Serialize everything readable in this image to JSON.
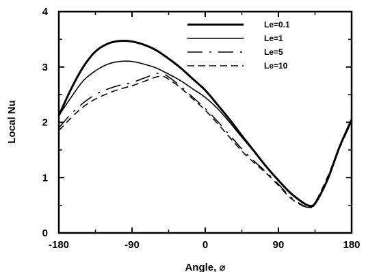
{
  "chart_data": {
    "type": "line",
    "xlabel": "Angle, ⌀",
    "ylabel": "Local Nu",
    "xlim": [
      -180,
      180
    ],
    "ylim": [
      0,
      4
    ],
    "xticks": [
      -180,
      -90,
      0,
      90,
      180
    ],
    "yticks": [
      0,
      1,
      2,
      3,
      4
    ],
    "grid": false,
    "legend_position": "top-right",
    "series": [
      {
        "name": "Le=0.1",
        "style": "thick-solid",
        "x": [
          -180,
          -165,
          -150,
          -135,
          -120,
          -105,
          -90,
          -75,
          -60,
          -45,
          -30,
          -15,
          0,
          15,
          30,
          45,
          60,
          75,
          90,
          105,
          120,
          128,
          135,
          150,
          165,
          180
        ],
        "y": [
          2.12,
          2.6,
          3.0,
          3.28,
          3.42,
          3.47,
          3.46,
          3.4,
          3.3,
          3.15,
          2.98,
          2.78,
          2.58,
          2.32,
          2.05,
          1.76,
          1.48,
          1.2,
          0.95,
          0.72,
          0.55,
          0.49,
          0.53,
          0.95,
          1.55,
          2.05
        ]
      },
      {
        "name": "Le=1",
        "style": "solid",
        "x": [
          -180,
          -165,
          -150,
          -135,
          -120,
          -105,
          -90,
          -75,
          -60,
          -45,
          -30,
          -15,
          0,
          15,
          30,
          45,
          60,
          75,
          90,
          105,
          120,
          128,
          135,
          150,
          165,
          180
        ],
        "y": [
          2.12,
          2.45,
          2.75,
          2.93,
          3.05,
          3.1,
          3.1,
          3.05,
          2.98,
          2.87,
          2.75,
          2.6,
          2.45,
          2.25,
          2.0,
          1.73,
          1.47,
          1.2,
          0.95,
          0.73,
          0.55,
          0.5,
          0.55,
          0.96,
          1.55,
          2.05
        ]
      },
      {
        "name": "Le=5",
        "style": "dash-dot",
        "x": [
          -180,
          -165,
          -150,
          -135,
          -120,
          -105,
          -90,
          -75,
          -60,
          -52,
          -45,
          -30,
          -15,
          0,
          15,
          30,
          45,
          60,
          75,
          90,
          105,
          120,
          128,
          135,
          150,
          165,
          180
        ],
        "y": [
          1.9,
          2.15,
          2.35,
          2.5,
          2.6,
          2.67,
          2.72,
          2.8,
          2.88,
          2.87,
          2.82,
          2.65,
          2.45,
          2.25,
          2.02,
          1.77,
          1.52,
          1.3,
          1.1,
          0.88,
          0.65,
          0.5,
          0.46,
          0.52,
          0.97,
          1.52,
          2.02
        ]
      },
      {
        "name": "Le=10",
        "style": "dashed",
        "x": [
          -180,
          -165,
          -150,
          -135,
          -120,
          -105,
          -90,
          -75,
          -60,
          -52,
          -45,
          -30,
          -15,
          0,
          15,
          30,
          45,
          60,
          75,
          90,
          105,
          120,
          128,
          135,
          150,
          165,
          180
        ],
        "y": [
          1.85,
          2.08,
          2.28,
          2.42,
          2.52,
          2.6,
          2.66,
          2.74,
          2.82,
          2.83,
          2.78,
          2.62,
          2.42,
          2.22,
          1.98,
          1.73,
          1.48,
          1.27,
          1.08,
          0.86,
          0.63,
          0.49,
          0.47,
          0.55,
          1.0,
          1.55,
          2.03
        ]
      }
    ]
  }
}
